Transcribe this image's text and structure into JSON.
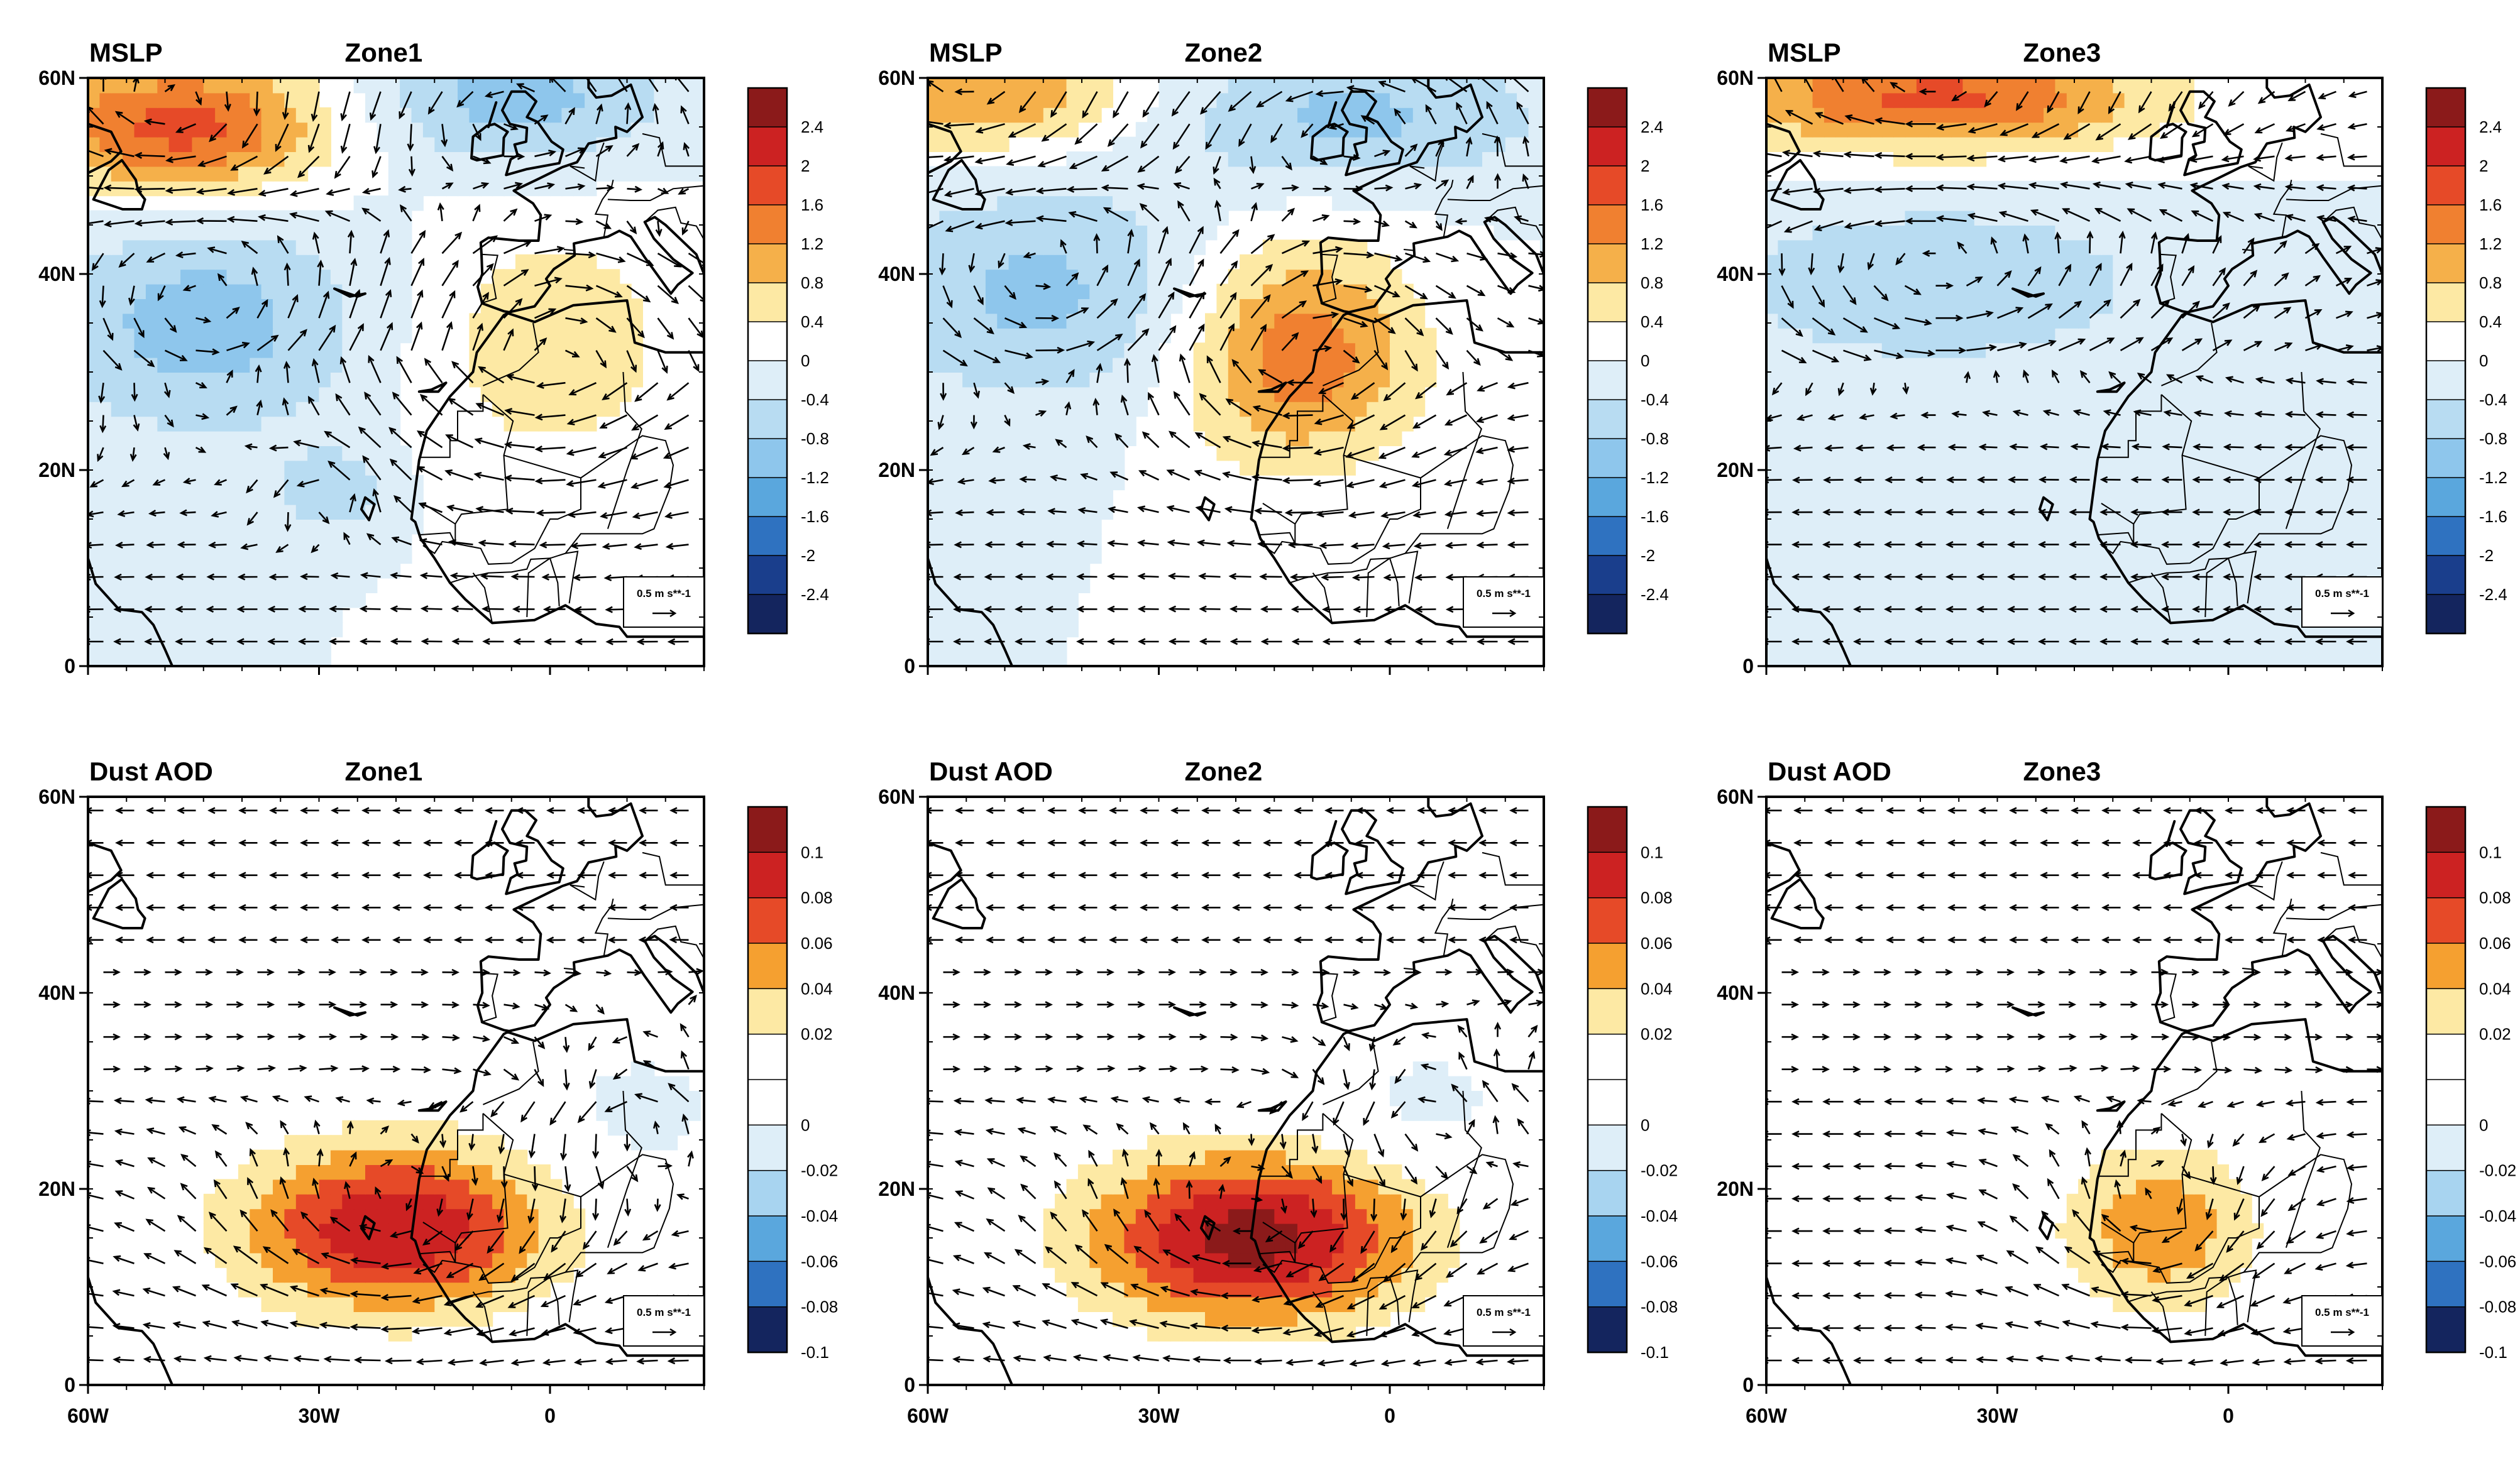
{
  "figure": {
    "panels": [
      {
        "id": "mslp-zone1",
        "variable": "MSLP",
        "zone": "Zone1",
        "row": 0,
        "col": 0,
        "colorbar": "mslp",
        "ref_vector": "0.5 m s**-1",
        "field": [
          {
            "lat": 55,
            "lon": -48,
            "value": 1.8,
            "slat": 5,
            "slon": 14
          },
          {
            "lat": 58,
            "lon": -5,
            "value": -1.0,
            "slat": 5,
            "slon": 14
          },
          {
            "lat": 35,
            "lon": -45,
            "value": -1.0,
            "slat": 8,
            "slon": 15
          },
          {
            "lat": 33,
            "lon": 0,
            "value": 0.7,
            "slat": 9,
            "slon": 12
          },
          {
            "lat": 18,
            "lon": -28,
            "value": -0.7,
            "slat": 3,
            "slon": 5
          }
        ]
      },
      {
        "id": "mslp-zone2",
        "variable": "MSLP",
        "zone": "Zone2",
        "row": 0,
        "col": 1,
        "colorbar": "mslp",
        "ref_vector": "0.5 m s**-1",
        "field": [
          {
            "lat": 58,
            "lon": -52,
            "value": 1.2,
            "slat": 4,
            "slon": 14
          },
          {
            "lat": 56,
            "lon": -5,
            "value": -0.9,
            "slat": 5,
            "slon": 18
          },
          {
            "lat": 38,
            "lon": -45,
            "value": -0.9,
            "slat": 8,
            "slon": 16
          },
          {
            "lat": 32,
            "lon": -12,
            "value": 1.5,
            "slat": 8,
            "slon": 11
          }
        ]
      },
      {
        "id": "mslp-zone3",
        "variable": "MSLP",
        "zone": "Zone3",
        "row": 0,
        "col": 2,
        "colorbar": "mslp",
        "ref_vector": "0.5 m s**-1",
        "field": [
          {
            "lat": 58,
            "lon": -38,
            "value": 1.7,
            "slat": 4,
            "slon": 20
          },
          {
            "lat": 39,
            "lon": -38,
            "value": -0.8,
            "slat": 6,
            "slon": 20
          }
        ]
      },
      {
        "id": "aod-zone1",
        "variable": "Dust AOD",
        "zone": "Zone1",
        "row": 1,
        "col": 0,
        "colorbar": "aod",
        "ref_vector": "0.5 m s**-1",
        "field": [
          {
            "lat": 16,
            "lon": -20,
            "value": 0.1,
            "slat": 6,
            "slon": 14
          },
          {
            "lat": 28,
            "lon": 12,
            "value": -0.03,
            "slat": 5,
            "slon": 8
          }
        ]
      },
      {
        "id": "aod-zone2",
        "variable": "Dust AOD",
        "zone": "Zone2",
        "row": 1,
        "col": 1,
        "colorbar": "aod",
        "ref_vector": "0.5 m s**-1",
        "field": [
          {
            "lat": 15,
            "lon": -18,
            "value": 0.11,
            "slat": 6,
            "slon": 15
          },
          {
            "lat": 29,
            "lon": 5,
            "value": -0.03,
            "slat": 4,
            "slon": 8
          }
        ]
      },
      {
        "id": "aod-zone3",
        "variable": "Dust AOD",
        "zone": "Zone3",
        "row": 1,
        "col": 2,
        "colorbar": "aod",
        "ref_vector": "0.5 m s**-1",
        "field": [
          {
            "lat": 16,
            "lon": -9,
            "value": 0.055,
            "slat": 6,
            "slon": 9
          }
        ]
      }
    ],
    "axes": {
      "lon_range": [
        -60,
        20
      ],
      "lat_range": [
        0,
        60
      ],
      "lon_ticks": [
        {
          "value": -60,
          "label": "60W"
        },
        {
          "value": -30,
          "label": "30W"
        },
        {
          "value": 0,
          "label": "0"
        }
      ],
      "lat_ticks": [
        {
          "value": 0,
          "label": "0"
        },
        {
          "value": 20,
          "label": "20N"
        },
        {
          "value": 40,
          "label": "40N"
        },
        {
          "value": 60,
          "label": "60N"
        }
      ]
    },
    "colorbars": {
      "mslp": {
        "labels": [
          "2.4",
          "2",
          "1.6",
          "1.2",
          "0.8",
          "0.4",
          "0",
          "-0.4",
          "-0.8",
          "-1.2",
          "-1.6",
          "-2",
          "-2.4"
        ],
        "colors": [
          "#8b1a1a",
          "#cc2222",
          "#e64a28",
          "#f08030",
          "#f5b04a",
          "#fde9a4",
          "#ffffff",
          "#deeef8",
          "#b8dcf2",
          "#8ec6ec",
          "#5aa7dd",
          "#2f72c0",
          "#1a3e8c",
          "#14255e"
        ],
        "min": -2.8,
        "max": 2.8,
        "step": 0.4
      },
      "aod": {
        "labels": [
          "0.1",
          "0.08",
          "0.06",
          "0.04",
          "0.02",
          "0",
          "-0.02",
          "-0.04",
          "-0.06",
          "-0.08",
          "-0.1"
        ],
        "colors": [
          "#8b1a1a",
          "#cc2222",
          "#e64a28",
          "#f5a030",
          "#fde9a4",
          "#ffffff",
          "#ffffff",
          "#deeef8",
          "#a8d4f0",
          "#5aa7dd",
          "#2f72c0",
          "#14255e"
        ],
        "min": -0.12,
        "max": 0.12,
        "step": 0.02
      }
    },
    "ref_arrow_text": "0.5 m s**-1"
  }
}
